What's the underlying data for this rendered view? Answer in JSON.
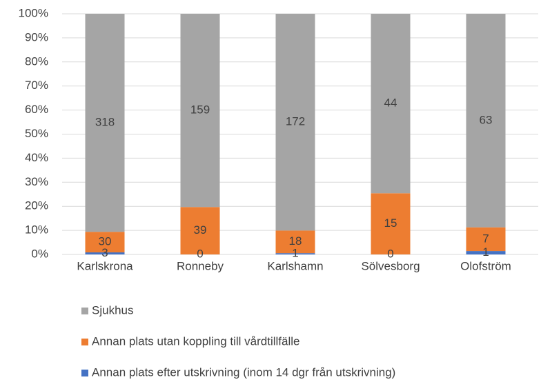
{
  "chart_data": {
    "type": "bar",
    "stacking": "percent",
    "categories": [
      "Karlskrona",
      "Ronneby",
      "Karlshamn",
      "Sölvesborg",
      "Olofström"
    ],
    "series": [
      {
        "name": "Annan plats efter utskrivning (inom 14 dgr från utskrivning)",
        "color": "#4472c4",
        "values": [
          3,
          0,
          1,
          0,
          1
        ]
      },
      {
        "name": "Annan plats utan koppling till vårdtillfälle",
        "color": "#ed7d31",
        "values": [
          30,
          39,
          18,
          15,
          7
        ]
      },
      {
        "name": "Sjukhus",
        "color": "#a5a5a5",
        "values": [
          318,
          159,
          172,
          44,
          63
        ]
      }
    ],
    "ylim": [
      0,
      100
    ],
    "yticks": [
      {
        "value": 0,
        "label": "0%"
      },
      {
        "value": 10,
        "label": "10%"
      },
      {
        "value": 20,
        "label": "20%"
      },
      {
        "value": 30,
        "label": "30%"
      },
      {
        "value": 40,
        "label": "40%"
      },
      {
        "value": 50,
        "label": "50%"
      },
      {
        "value": 60,
        "label": "60%"
      },
      {
        "value": 70,
        "label": "70%"
      },
      {
        "value": 80,
        "label": "80%"
      },
      {
        "value": 90,
        "label": "90%"
      },
      {
        "value": 100,
        "label": "100%"
      }
    ],
    "grid": true,
    "legend": "bottom"
  }
}
